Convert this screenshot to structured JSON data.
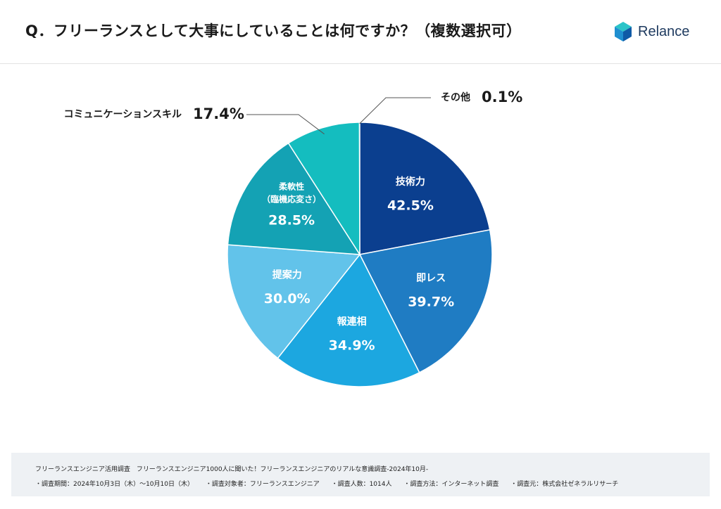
{
  "header": {
    "title": "Q．フリーランスとして大事にしていることは何ですか？（複数選択可）",
    "brand": "Relance"
  },
  "chart_data": {
    "type": "pie",
    "title": "Q．フリーランスとして大事にしていることは何ですか？（複数選択可）",
    "slices": [
      {
        "label": "技術力",
        "value": 42.5,
        "display": "42.5%",
        "color": "#0b3f8f",
        "placement": "inside"
      },
      {
        "label": "即レス",
        "value": 39.7,
        "display": "39.7%",
        "color": "#1f7cc3",
        "placement": "inside"
      },
      {
        "label": "報連相",
        "value": 34.9,
        "display": "34.9%",
        "color": "#1ca7e0",
        "placement": "inside"
      },
      {
        "label": "提案力",
        "value": 30.0,
        "display": "30.0%",
        "color": "#62c3ea",
        "placement": "inside"
      },
      {
        "label": "柔軟性",
        "sublabel": "（臨機応変さ）",
        "value": 28.5,
        "display": "28.5%",
        "color": "#14a2b4",
        "placement": "inside"
      },
      {
        "label": "コミュニケーションスキル",
        "value": 17.4,
        "display": "17.4%",
        "color": "#14bdbf",
        "placement": "callout-left"
      },
      {
        "label": "その他",
        "value": 0.1,
        "display": "0.1%",
        "color": "#9fdde4",
        "placement": "callout-right"
      }
    ]
  },
  "footer": {
    "line1": "フリーランスエンジニア活用調査　フリーランスエンジニア1000人に聞いた！フリーランスエンジニアのリアルな意識調査-2024年10月-",
    "period": "・調査期間：2024年10月3日（木）～10月10日（木）",
    "target": "・調査対象者：フリーランスエンジニア",
    "count": "・調査人数：1014人",
    "method": "・調査方法：インターネット調査",
    "org": "・調査元：株式会社ゼネラルリサーチ"
  }
}
